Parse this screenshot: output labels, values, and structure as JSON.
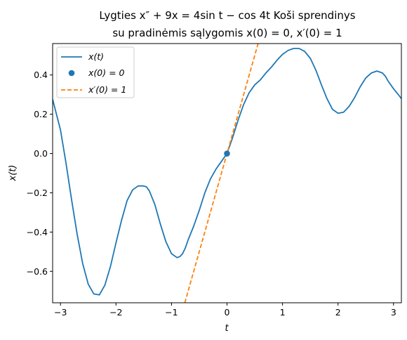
{
  "chart_data": {
    "type": "line",
    "title_line1": "Lygties x″ + 9x = 4sin t − cos 4t Koši sprendinys",
    "title_line2": "su pradinėmis sąlygomis x(0) = 0, x′(0) = 1",
    "xlabel": "t",
    "ylabel": "x(t)",
    "xlim": [
      -3.14159,
      3.14159
    ],
    "ylim": [
      -0.76,
      0.56
    ],
    "xticks": [
      -3,
      -2,
      -1,
      0,
      1,
      2,
      3
    ],
    "xtick_labels": [
      "−3",
      "−2",
      "−1",
      "0",
      "1",
      "2",
      "3"
    ],
    "yticks": [
      -0.6,
      -0.4,
      -0.2,
      0.0,
      0.2,
      0.4
    ],
    "ytick_labels": [
      "−0.6",
      "−0.4",
      "−0.2",
      "0.0",
      "0.2",
      "0.4"
    ],
    "grid": false,
    "legend_position": "top-left",
    "series": [
      {
        "name": "x(t)",
        "kind": "line",
        "color": "#1f77b4",
        "x": [
          -3.1416,
          -3.0,
          -2.9,
          -2.8,
          -2.7,
          -2.6,
          -2.5,
          -2.4,
          -2.3,
          -2.2,
          -2.1,
          -2.0,
          -1.9,
          -1.8,
          -1.7,
          -1.6,
          -1.5,
          -1.45,
          -1.4,
          -1.3,
          -1.2,
          -1.1,
          -1.0,
          -0.9,
          -0.85,
          -0.8,
          -0.75,
          -0.7,
          -0.6,
          -0.5,
          -0.4,
          -0.3,
          -0.2,
          -0.1,
          0.0,
          0.1,
          0.2,
          0.3,
          0.4,
          0.5,
          0.6,
          0.7,
          0.8,
          0.9,
          1.0,
          1.1,
          1.2,
          1.3,
          1.4,
          1.5,
          1.6,
          1.7,
          1.8,
          1.9,
          2.0,
          2.1,
          2.2,
          2.3,
          2.4,
          2.5,
          2.6,
          2.7,
          2.8,
          2.85,
          2.9,
          3.0,
          3.1,
          3.1416
        ],
        "y": [
          0.276,
          0.12,
          -0.05,
          -0.235,
          -0.41,
          -0.56,
          -0.665,
          -0.715,
          -0.72,
          -0.67,
          -0.575,
          -0.455,
          -0.34,
          -0.24,
          -0.185,
          -0.165,
          -0.165,
          -0.17,
          -0.19,
          -0.26,
          -0.36,
          -0.45,
          -0.51,
          -0.53,
          -0.525,
          -0.51,
          -0.48,
          -0.44,
          -0.37,
          -0.29,
          -0.2,
          -0.13,
          -0.08,
          -0.04,
          0.0,
          0.08,
          0.17,
          0.25,
          0.31,
          0.35,
          0.375,
          0.41,
          0.44,
          0.475,
          0.505,
          0.525,
          0.535,
          0.535,
          0.52,
          0.485,
          0.425,
          0.35,
          0.28,
          0.225,
          0.205,
          0.21,
          0.24,
          0.285,
          0.34,
          0.385,
          0.41,
          0.42,
          0.41,
          0.395,
          0.37,
          0.33,
          0.295,
          0.28
        ]
      },
      {
        "name": "x(0) = 0",
        "kind": "point",
        "color": "#1f77b4",
        "x": [
          0
        ],
        "y": [
          0
        ]
      },
      {
        "name": "x′(0) = 1",
        "kind": "dashed-line",
        "color": "#ff7f0e",
        "x": [
          -0.76,
          0.56
        ],
        "y": [
          -0.76,
          0.56
        ]
      }
    ]
  }
}
